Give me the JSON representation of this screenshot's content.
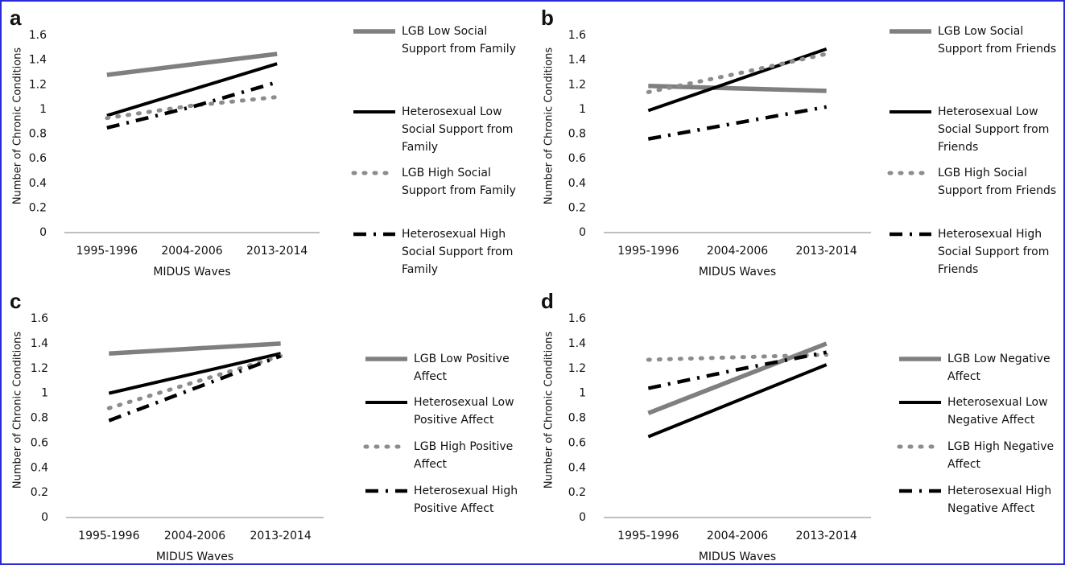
{
  "chart_data": [
    {
      "type": "line",
      "title": "a",
      "ylabel": "Number of Chronic Conditions",
      "xlabel": "MIDUS Waves",
      "categories": [
        "1995-1996",
        "2004-2006",
        "2013-2014"
      ],
      "ylim": [
        0,
        1.6
      ],
      "yticks": [
        0,
        0.2,
        0.4,
        0.6,
        0.8,
        1,
        1.2,
        1.4,
        1.6
      ],
      "grid": false,
      "series": [
        {
          "name": "LGB Low Social Support from Family",
          "color": "#7f7f7f",
          "dash": "solid",
          "values": [
            1.28,
            1.365,
            1.45
          ]
        },
        {
          "name": "Heterosexual Low Social Support from Family",
          "color": "#000000",
          "dash": "solid",
          "values": [
            0.95,
            1.16,
            1.37
          ]
        },
        {
          "name": "LGB High Social Support from Family",
          "color": "#8c8c8c",
          "dash": "dotted",
          "values": [
            0.93,
            1.03,
            1.1
          ]
        },
        {
          "name": "Heterosexual High Social Support from Family",
          "color": "#000000",
          "dash": "dash-dot",
          "values": [
            0.85,
            1.02,
            1.22
          ]
        }
      ]
    },
    {
      "type": "line",
      "title": "b",
      "ylabel": "Number of Chronic Conditions",
      "xlabel": "MIDUS Waves",
      "categories": [
        "1995-1996",
        "2004-2006",
        "2013-2014"
      ],
      "ylim": [
        0,
        1.6
      ],
      "yticks": [
        0,
        0.2,
        0.4,
        0.6,
        0.8,
        1,
        1.2,
        1.4,
        1.6
      ],
      "grid": false,
      "series": [
        {
          "name": "LGB Low Social Support from Friends",
          "color": "#7f7f7f",
          "dash": "solid",
          "values": [
            1.19,
            1.17,
            1.15
          ]
        },
        {
          "name": "Heterosexual Low Social Support from Friends",
          "color": "#000000",
          "dash": "solid",
          "values": [
            0.99,
            1.24,
            1.49
          ]
        },
        {
          "name": "LGB High Social Support from Friends",
          "color": "#8c8c8c",
          "dash": "dotted",
          "values": [
            1.14,
            1.29,
            1.45
          ]
        },
        {
          "name": "Heterosexual High Social Support from Friends",
          "color": "#000000",
          "dash": "dash-dot",
          "values": [
            0.76,
            0.89,
            1.02
          ]
        }
      ]
    },
    {
      "type": "line",
      "title": "c",
      "ylabel": "Number of Chronic Conditions",
      "xlabel": "MIDUS Waves",
      "categories": [
        "1995-1996",
        "2004-2006",
        "2013-2014"
      ],
      "ylim": [
        0,
        1.6
      ],
      "yticks": [
        0,
        0.2,
        0.4,
        0.6,
        0.8,
        1,
        1.2,
        1.4,
        1.6
      ],
      "grid": false,
      "series": [
        {
          "name": "LGB Low Positive Affect",
          "color": "#7f7f7f",
          "dash": "solid",
          "values": [
            1.32,
            1.36,
            1.4
          ]
        },
        {
          "name": "Heterosexual Low Positive Affect",
          "color": "#000000",
          "dash": "solid",
          "values": [
            1.0,
            1.16,
            1.32
          ]
        },
        {
          "name": "LGB High Positive Affect",
          "color": "#8c8c8c",
          "dash": "dotted",
          "values": [
            0.88,
            1.09,
            1.3
          ]
        },
        {
          "name": "Heterosexual High Positive Affect",
          "color": "#000000",
          "dash": "dash-dot",
          "values": [
            0.78,
            1.04,
            1.3
          ]
        }
      ]
    },
    {
      "type": "line",
      "title": "d",
      "ylabel": "Number of Chronic Conditions",
      "xlabel": "MIDUS Waves",
      "categories": [
        "1995-1996",
        "2004-2006",
        "2013-2014"
      ],
      "ylim": [
        0,
        1.6
      ],
      "yticks": [
        0,
        0.2,
        0.4,
        0.6,
        0.8,
        1,
        1.2,
        1.4,
        1.6
      ],
      "grid": false,
      "series": [
        {
          "name": "LGB Low Negative Affect",
          "color": "#7f7f7f",
          "dash": "solid",
          "values": [
            0.84,
            1.12,
            1.4
          ]
        },
        {
          "name": "Heterosexual Low Negative Affect",
          "color": "#000000",
          "dash": "solid",
          "values": [
            0.65,
            0.94,
            1.23
          ]
        },
        {
          "name": "LGB High Negative Affect",
          "color": "#8c8c8c",
          "dash": "dotted",
          "values": [
            1.27,
            1.29,
            1.31
          ]
        },
        {
          "name": "Heterosexual High Negative Affect",
          "color": "#000000",
          "dash": "dash-dot",
          "values": [
            1.04,
            1.19,
            1.33
          ]
        }
      ]
    }
  ]
}
